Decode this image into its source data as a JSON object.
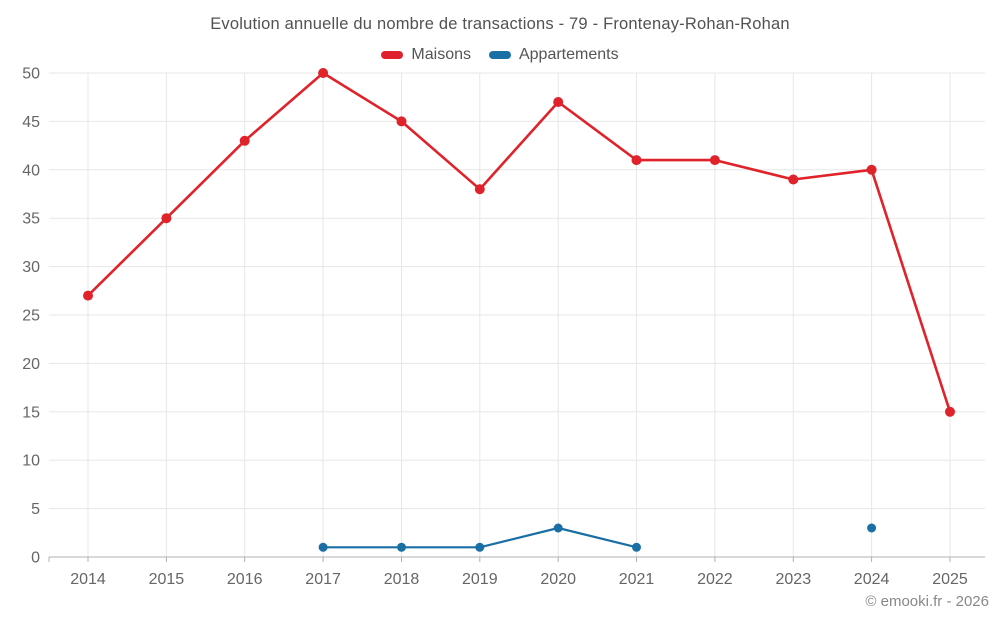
{
  "page": {
    "footer": "© emooki.fr - 2026"
  },
  "chart_data": {
    "type": "line",
    "title": "Evolution annuelle du nombre de transactions - 79 - Frontenay-Rohan-Rohan",
    "categories": [
      "2014",
      "2015",
      "2016",
      "2017",
      "2018",
      "2019",
      "2020",
      "2021",
      "2022",
      "2023",
      "2024",
      "2025"
    ],
    "series": [
      {
        "name": "Maisons",
        "color": "#e0222a",
        "values": [
          27,
          35,
          43,
          50,
          45,
          38,
          47,
          41,
          41,
          39,
          40,
          15
        ]
      },
      {
        "name": "Appartements",
        "color": "#1a6fa5",
        "values": [
          null,
          null,
          null,
          1,
          1,
          1,
          3,
          1,
          null,
          null,
          3,
          null
        ]
      }
    ],
    "xlabel": "",
    "ylabel": "",
    "ylim": [
      0,
      50
    ],
    "ytick_step": 5,
    "yticks": [
      "0",
      "5",
      "10",
      "15",
      "20",
      "25",
      "30",
      "35",
      "40",
      "45",
      "50"
    ],
    "grid": true,
    "legend_position": "top",
    "grid_color": "#e7e7e7",
    "axis_line_color": "#b0b0b0",
    "axis_text_color": "#666666",
    "background": "#ffffff"
  }
}
